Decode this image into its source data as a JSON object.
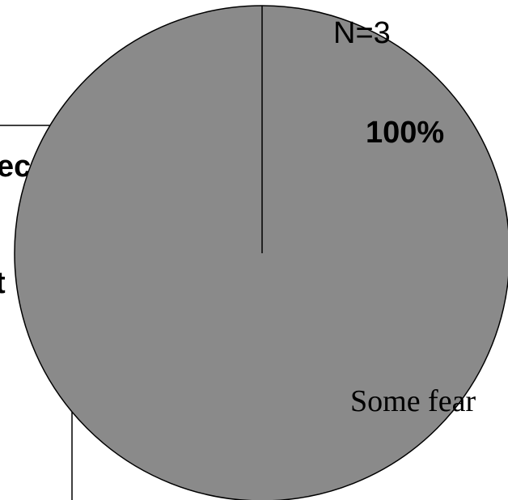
{
  "chart_data": {
    "type": "pie",
    "categories": [
      "Some fear"
    ],
    "values": [
      100
    ],
    "data_labels": [
      "100%"
    ],
    "annotation": "N=3",
    "colors": [
      "#8a8a8a"
    ],
    "legend_fragments": [
      "ec",
      "t"
    ],
    "legend_placement": "left (partially hidden behind pie)"
  }
}
